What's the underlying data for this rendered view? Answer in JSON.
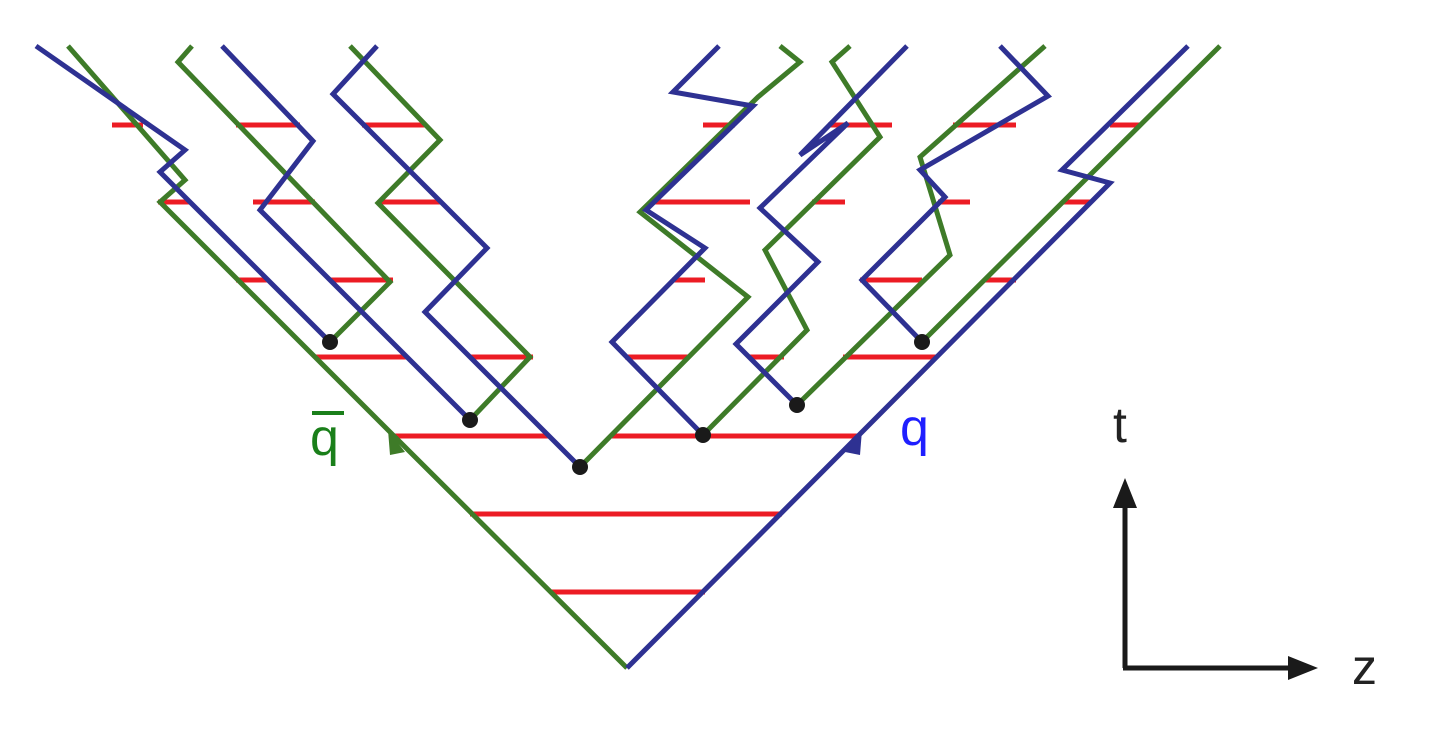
{
  "labels": {
    "antiquark": "q",
    "quark": "q",
    "time_axis": "t",
    "space_axis": "z"
  },
  "colors": {
    "quark_line": "#2e3192",
    "quark_label": "#1f1fff",
    "antiquark_line": "#3e7b28",
    "antiquark_label": "#1a7f1a",
    "string_segment": "#ec1c24",
    "vertex": "#1a1a1a",
    "axis": "#1a1a1a",
    "axis_label": "#222222"
  },
  "diagram": {
    "description_free": true,
    "vertex_count": 6,
    "string_segment_count": 31
  }
}
